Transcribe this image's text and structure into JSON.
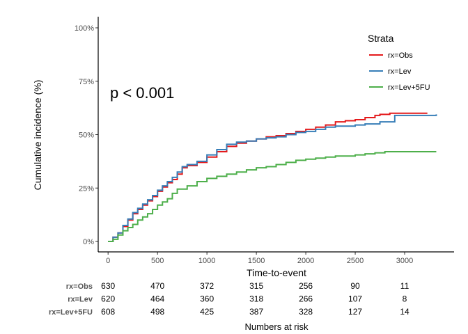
{
  "chart_data": {
    "type": "line",
    "subtype": "step",
    "xlabel": "Time-to-event",
    "ylabel": "Cumulative incidence (%)",
    "xlim": [
      -100,
      3500
    ],
    "ylim": [
      0,
      1
    ],
    "x_ticks": [
      0,
      500,
      1000,
      1500,
      2000,
      2500,
      3000
    ],
    "x_tick_labels": [
      "0",
      "500",
      "1000",
      "1500",
      "2000",
      "2500",
      "3000"
    ],
    "y_ticks": [
      0,
      0.25,
      0.5,
      0.75,
      1.0
    ],
    "y_tick_labels": [
      "0%",
      "25%",
      "50%",
      "75%",
      "100%"
    ],
    "grid": false,
    "annotation": "p < 0.001",
    "legend": {
      "title": "Strata",
      "placement": "top-right"
    },
    "series": [
      {
        "name": "rx=Obs",
        "color": "#E41A1C",
        "points": [
          [
            0,
            0
          ],
          [
            50,
            0.02
          ],
          [
            100,
            0.04
          ],
          [
            150,
            0.07
          ],
          [
            200,
            0.1
          ],
          [
            250,
            0.13
          ],
          [
            300,
            0.15
          ],
          [
            350,
            0.17
          ],
          [
            400,
            0.19
          ],
          [
            450,
            0.21
          ],
          [
            500,
            0.235
          ],
          [
            550,
            0.255
          ],
          [
            600,
            0.275
          ],
          [
            650,
            0.29
          ],
          [
            700,
            0.315
          ],
          [
            750,
            0.345
          ],
          [
            800,
            0.355
          ],
          [
            900,
            0.37
          ],
          [
            1000,
            0.395
          ],
          [
            1100,
            0.42
          ],
          [
            1200,
            0.445
          ],
          [
            1300,
            0.46
          ],
          [
            1400,
            0.47
          ],
          [
            1500,
            0.48
          ],
          [
            1600,
            0.49
          ],
          [
            1700,
            0.495
          ],
          [
            1800,
            0.505
          ],
          [
            1900,
            0.515
          ],
          [
            2000,
            0.525
          ],
          [
            2100,
            0.535
          ],
          [
            2200,
            0.545
          ],
          [
            2300,
            0.56
          ],
          [
            2400,
            0.565
          ],
          [
            2500,
            0.57
          ],
          [
            2600,
            0.58
          ],
          [
            2700,
            0.59
          ],
          [
            2750,
            0.595
          ],
          [
            2850,
            0.6
          ],
          [
            3230,
            0.6
          ]
        ]
      },
      {
        "name": "rx=Lev",
        "color": "#377EB8",
        "points": [
          [
            0,
            0
          ],
          [
            50,
            0.02
          ],
          [
            100,
            0.04
          ],
          [
            150,
            0.075
          ],
          [
            200,
            0.105
          ],
          [
            250,
            0.135
          ],
          [
            300,
            0.155
          ],
          [
            350,
            0.175
          ],
          [
            400,
            0.195
          ],
          [
            450,
            0.215
          ],
          [
            500,
            0.24
          ],
          [
            550,
            0.26
          ],
          [
            600,
            0.28
          ],
          [
            650,
            0.3
          ],
          [
            700,
            0.325
          ],
          [
            750,
            0.35
          ],
          [
            800,
            0.36
          ],
          [
            900,
            0.375
          ],
          [
            1000,
            0.405
          ],
          [
            1100,
            0.43
          ],
          [
            1200,
            0.455
          ],
          [
            1300,
            0.465
          ],
          [
            1400,
            0.47
          ],
          [
            1500,
            0.48
          ],
          [
            1600,
            0.485
          ],
          [
            1700,
            0.49
          ],
          [
            1800,
            0.5
          ],
          [
            1900,
            0.51
          ],
          [
            2000,
            0.515
          ],
          [
            2100,
            0.525
          ],
          [
            2200,
            0.535
          ],
          [
            2300,
            0.54
          ],
          [
            2400,
            0.54
          ],
          [
            2500,
            0.545
          ],
          [
            2600,
            0.55
          ],
          [
            2750,
            0.56
          ],
          [
            2900,
            0.59
          ],
          [
            3320,
            0.595
          ]
        ]
      },
      {
        "name": "rx=Lev+5FU",
        "color": "#4DAF4A",
        "points": [
          [
            0,
            0
          ],
          [
            50,
            0.01
          ],
          [
            100,
            0.03
          ],
          [
            150,
            0.05
          ],
          [
            200,
            0.065
          ],
          [
            250,
            0.08
          ],
          [
            300,
            0.1
          ],
          [
            350,
            0.115
          ],
          [
            400,
            0.13
          ],
          [
            450,
            0.15
          ],
          [
            500,
            0.17
          ],
          [
            550,
            0.185
          ],
          [
            600,
            0.2
          ],
          [
            650,
            0.225
          ],
          [
            700,
            0.245
          ],
          [
            800,
            0.26
          ],
          [
            900,
            0.28
          ],
          [
            1000,
            0.295
          ],
          [
            1100,
            0.305
          ],
          [
            1200,
            0.315
          ],
          [
            1300,
            0.325
          ],
          [
            1400,
            0.335
          ],
          [
            1500,
            0.345
          ],
          [
            1600,
            0.35
          ],
          [
            1700,
            0.36
          ],
          [
            1800,
            0.37
          ],
          [
            1900,
            0.38
          ],
          [
            2000,
            0.385
          ],
          [
            2100,
            0.39
          ],
          [
            2200,
            0.395
          ],
          [
            2300,
            0.4
          ],
          [
            2400,
            0.4
          ],
          [
            2500,
            0.405
          ],
          [
            2600,
            0.41
          ],
          [
            2700,
            0.415
          ],
          [
            2800,
            0.42
          ],
          [
            3320,
            0.42
          ]
        ]
      }
    ],
    "risk_table": {
      "title": "Numbers at risk",
      "times": [
        0,
        500,
        1000,
        1500,
        2000,
        2500,
        3000
      ],
      "rows": [
        {
          "label": "rx=Obs",
          "values": [
            "630",
            "470",
            "372",
            "315",
            "256",
            "90",
            "11"
          ]
        },
        {
          "label": "rx=Lev",
          "values": [
            "620",
            "464",
            "360",
            "318",
            "266",
            "107",
            "8"
          ]
        },
        {
          "label": "rx=Lev+5FU",
          "values": [
            "608",
            "498",
            "425",
            "387",
            "328",
            "127",
            "14"
          ]
        }
      ]
    }
  }
}
